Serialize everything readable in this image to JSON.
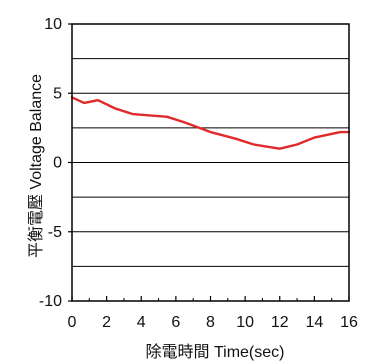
{
  "chart_data": {
    "type": "line",
    "title": "",
    "xlabel": "除電時間 Time(sec)",
    "ylabel": "平衡電壓 Voltage Balance",
    "xlim": [
      0,
      16
    ],
    "ylim": [
      -10,
      10
    ],
    "x_ticks": [
      0,
      2,
      4,
      6,
      8,
      10,
      12,
      14,
      16
    ],
    "y_ticks": [
      10,
      5,
      0,
      -5,
      -10
    ],
    "x_tick_labels": [
      "0",
      "2",
      "4",
      "6",
      "8",
      "10",
      "12",
      "14",
      "16"
    ],
    "y_tick_labels": [
      "10",
      "5",
      "0",
      "-5",
      "-10"
    ],
    "y_gridlines": [
      7.5,
      5,
      2.5,
      0,
      -2.5,
      -5,
      -7.5
    ],
    "grid": "horizontal",
    "series": [
      {
        "color": "#e02a2a",
        "x": [
          0,
          0.7,
          1.5,
          2.5,
          3.5,
          5.5,
          6.5,
          8,
          9.5,
          10.5,
          12,
          13,
          14,
          15.5,
          16
        ],
        "y": [
          4.7,
          4.3,
          4.5,
          3.9,
          3.5,
          3.3,
          2.9,
          2.2,
          1.7,
          1.3,
          1.0,
          1.3,
          1.8,
          2.2,
          2.2
        ]
      }
    ]
  }
}
